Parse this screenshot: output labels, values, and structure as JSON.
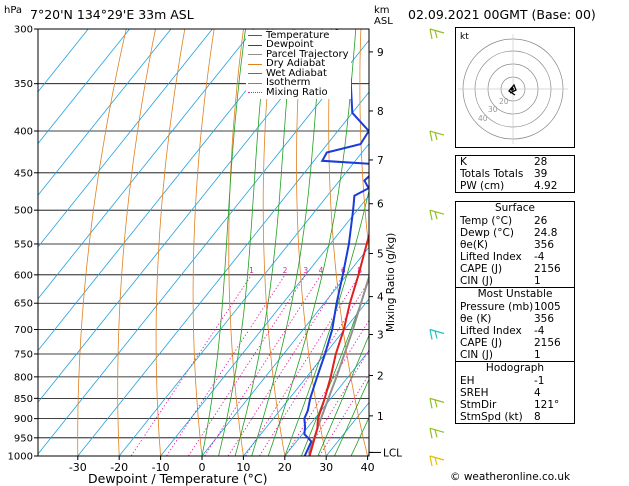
{
  "header": {
    "location": "7°20'N 134°29'E 33m ASL",
    "datetime": "02.09.2021 00GMT (Base: 00)",
    "hpa_unit": "hPa",
    "km_unit_1": "km",
    "km_unit_2": "ASL"
  },
  "legend": [
    {
      "label": "Temperature",
      "color": "#e02020"
    },
    {
      "label": "Dewpoint",
      "color": "#1a3adb"
    },
    {
      "label": "Parcel Trajectory",
      "color": "#909090"
    },
    {
      "label": "Dry Adiabat",
      "color": "#e08020"
    },
    {
      "label": "Wet Adiabat",
      "color": "#20a020"
    },
    {
      "label": "Isotherm",
      "color": "#20a0e0"
    },
    {
      "label": "Mixing Ratio",
      "color": "#e020a0"
    }
  ],
  "chart_data": {
    "type": "skew-t",
    "xlabel": "Dewpoint / Temperature (°C)",
    "ylabel_right": "Mixing Ratio (g/kg)",
    "pressure_levels": [
      300,
      350,
      400,
      450,
      500,
      550,
      600,
      650,
      700,
      750,
      800,
      850,
      900,
      950,
      1000
    ],
    "temperature_ticks": [
      -30,
      -20,
      -10,
      0,
      10,
      20,
      30,
      40
    ],
    "km_ticks": [
      {
        "label": "9",
        "p": 320
      },
      {
        "label": "8",
        "p": 378
      },
      {
        "label": "7",
        "p": 434
      },
      {
        "label": "6",
        "p": 491
      },
      {
        "label": "5",
        "p": 565
      },
      {
        "label": "4",
        "p": 638
      },
      {
        "label": "3",
        "p": 710
      },
      {
        "label": "2",
        "p": 797
      },
      {
        "label": "1",
        "p": 893
      },
      {
        "label": "LCL",
        "p": 990
      }
    ],
    "mixing_ratio_labels": [
      "1",
      "2",
      "3",
      "4",
      "6",
      "8",
      "10",
      "15",
      "20",
      "25"
    ],
    "mixing_ratio_values": [
      1,
      2,
      3,
      4,
      6,
      8,
      10,
      15,
      20,
      25
    ],
    "temperature_profile": [
      {
        "p": 1000,
        "t": 26
      },
      {
        "p": 950,
        "t": 23.7
      },
      {
        "p": 925,
        "t": 22.5
      },
      {
        "p": 900,
        "t": 20.8
      },
      {
        "p": 850,
        "t": 18.5
      },
      {
        "p": 800,
        "t": 15.8
      },
      {
        "p": 750,
        "t": 12.6
      },
      {
        "p": 700,
        "t": 9.8
      },
      {
        "p": 650,
        "t": 6.2
      },
      {
        "p": 600,
        "t": 2.8
      },
      {
        "p": 550,
        "t": -1.2
      },
      {
        "p": 500,
        "t": -5.5
      },
      {
        "p": 450,
        "t": -10.5
      },
      {
        "p": 400,
        "t": -16.5
      },
      {
        "p": 350,
        "t": -24
      },
      {
        "p": 300,
        "t": -32
      }
    ],
    "dewpoint_profile": [
      {
        "p": 1000,
        "t": 24.8
      },
      {
        "p": 960,
        "t": 23.6
      },
      {
        "p": 940,
        "t": 20.5
      },
      {
        "p": 920,
        "t": 19.2
      },
      {
        "p": 900,
        "t": 17.5
      },
      {
        "p": 880,
        "t": 16.8
      },
      {
        "p": 850,
        "t": 15
      },
      {
        "p": 800,
        "t": 12.5
      },
      {
        "p": 750,
        "t": 10
      },
      {
        "p": 700,
        "t": 7
      },
      {
        "p": 650,
        "t": 3
      },
      {
        "p": 600,
        "t": -1
      },
      {
        "p": 550,
        "t": -5.5
      },
      {
        "p": 500,
        "t": -11
      },
      {
        "p": 480,
        "t": -13.5
      },
      {
        "p": 470,
        "t": -11.5
      },
      {
        "p": 460,
        "t": -14
      },
      {
        "p": 450,
        "t": -13.5
      },
      {
        "p": 440,
        "t": -12
      },
      {
        "p": 435,
        "t": -28
      },
      {
        "p": 425,
        "t": -28.5
      },
      {
        "p": 415,
        "t": -22
      },
      {
        "p": 400,
        "t": -22.5
      },
      {
        "p": 380,
        "t": -30
      },
      {
        "p": 350,
        "t": -36
      },
      {
        "p": 320,
        "t": -43
      },
      {
        "p": 300,
        "t": -50
      }
    ],
    "parcel_profile": [
      {
        "p": 1000,
        "t": 26
      },
      {
        "p": 990,
        "t": 25.2
      },
      {
        "p": 900,
        "t": 21.5
      },
      {
        "p": 800,
        "t": 17.2
      },
      {
        "p": 700,
        "t": 12
      },
      {
        "p": 600,
        "t": 5.5
      },
      {
        "p": 500,
        "t": -2.5
      },
      {
        "p": 400,
        "t": -13.5
      },
      {
        "p": 300,
        "t": -29
      }
    ],
    "wind_barbs": [
      {
        "p": 300,
        "color": "#90c020"
      },
      {
        "p": 400,
        "color": "#90c020"
      },
      {
        "p": 500,
        "color": "#90c020"
      },
      {
        "p": 700,
        "color": "#20c0c0"
      },
      {
        "p": 850,
        "color": "#90c020"
      },
      {
        "p": 925,
        "color": "#90c020"
      },
      {
        "p": 1000,
        "color": "#e0c000"
      }
    ]
  },
  "hodograph": {
    "unit_label": "kt",
    "ring_labels": [
      "20",
      "30",
      "40"
    ]
  },
  "indices": {
    "rows": [
      {
        "label": "K",
        "value": "28"
      },
      {
        "label": "Totals Totals",
        "value": "39"
      },
      {
        "label": "PW (cm)",
        "value": "4.92"
      }
    ]
  },
  "surface": {
    "title": "Surface",
    "rows": [
      {
        "label": "Temp (°C)",
        "value": "26"
      },
      {
        "label": "Dewp (°C)",
        "value": "24.8"
      },
      {
        "label": "θe(K)",
        "value": "356"
      },
      {
        "label": "Lifted Index",
        "value": "-4"
      },
      {
        "label": "CAPE (J)",
        "value": "2156"
      },
      {
        "label": "CIN (J)",
        "value": "1"
      }
    ]
  },
  "most_unstable": {
    "title": "Most Unstable",
    "rows": [
      {
        "label": "Pressure (mb)",
        "value": "1005"
      },
      {
        "label": "θe (K)",
        "value": "356"
      },
      {
        "label": "Lifted Index",
        "value": "-4"
      },
      {
        "label": "CAPE (J)",
        "value": "2156"
      },
      {
        "label": "CIN (J)",
        "value": "1"
      }
    ]
  },
  "hodograph_table": {
    "title": "Hodograph",
    "rows": [
      {
        "label": "EH",
        "value": "-1"
      },
      {
        "label": "SREH",
        "value": "4"
      },
      {
        "label": "StmDir",
        "value": "121°"
      },
      {
        "label": "StmSpd (kt)",
        "value": "8"
      }
    ]
  },
  "copyright": "© weatheronline.co.uk"
}
